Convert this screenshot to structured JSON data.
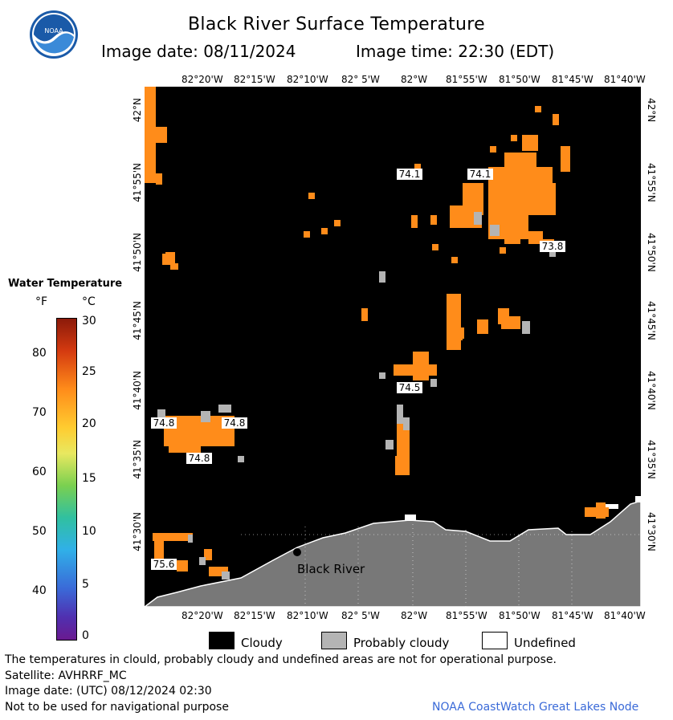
{
  "header": {
    "title": "Black River Surface Temperature",
    "image_date_label": "Image date: 08/11/2024",
    "image_time_label": "Image time: 22:30 (EDT)"
  },
  "map": {
    "lon_labels": [
      "82°20'W",
      "82°15'W",
      "82°10'W",
      "82° 5'W",
      "82°W",
      "81°55'W",
      "81°50'W",
      "81°45'W",
      "81°40'W"
    ],
    "lat_labels": [
      "42°N",
      "41°55'N",
      "41°50'N",
      "41°45'N",
      "41°40'N",
      "41°35'N",
      "41°30'N"
    ],
    "place_label": "Black River",
    "temp_labels": [
      "74.1",
      "74.1",
      "73.8",
      "74.5",
      "74.8",
      "74.8",
      "74.8",
      "75.6"
    ],
    "colors": {
      "water_warm": "#ff8c1a",
      "cloud": "#000000",
      "probably_cloudy": "#b4b4b4",
      "land": "#787878",
      "undefined": "#ffffff"
    }
  },
  "scale": {
    "title": "Water Temperature",
    "unit_f": "°F",
    "unit_c": "°C",
    "f_ticks": [
      "80",
      "70",
      "60",
      "50",
      "40"
    ],
    "c_ticks": [
      "30",
      "25",
      "20",
      "15",
      "10",
      "5",
      "0"
    ]
  },
  "legend": {
    "items": [
      {
        "label": "Cloudy",
        "color": "#000000"
      },
      {
        "label": "Probably cloudy",
        "color": "#b4b4b4"
      },
      {
        "label": "Undefined",
        "color": "#ffffff"
      }
    ]
  },
  "footer": {
    "disclaimer": "The temperatures in clould, probably cloudy and undefined areas are not for operational purpose.",
    "satellite": "Satellite: AVHRRF_MC",
    "utc_date": "Image date: (UTC) 08/12/2024  02:30",
    "nav_warning": "Not to be used for navigational purpose",
    "credit": "NOAA CoastWatch Great Lakes Node",
    "logo_text": "NOAA"
  }
}
